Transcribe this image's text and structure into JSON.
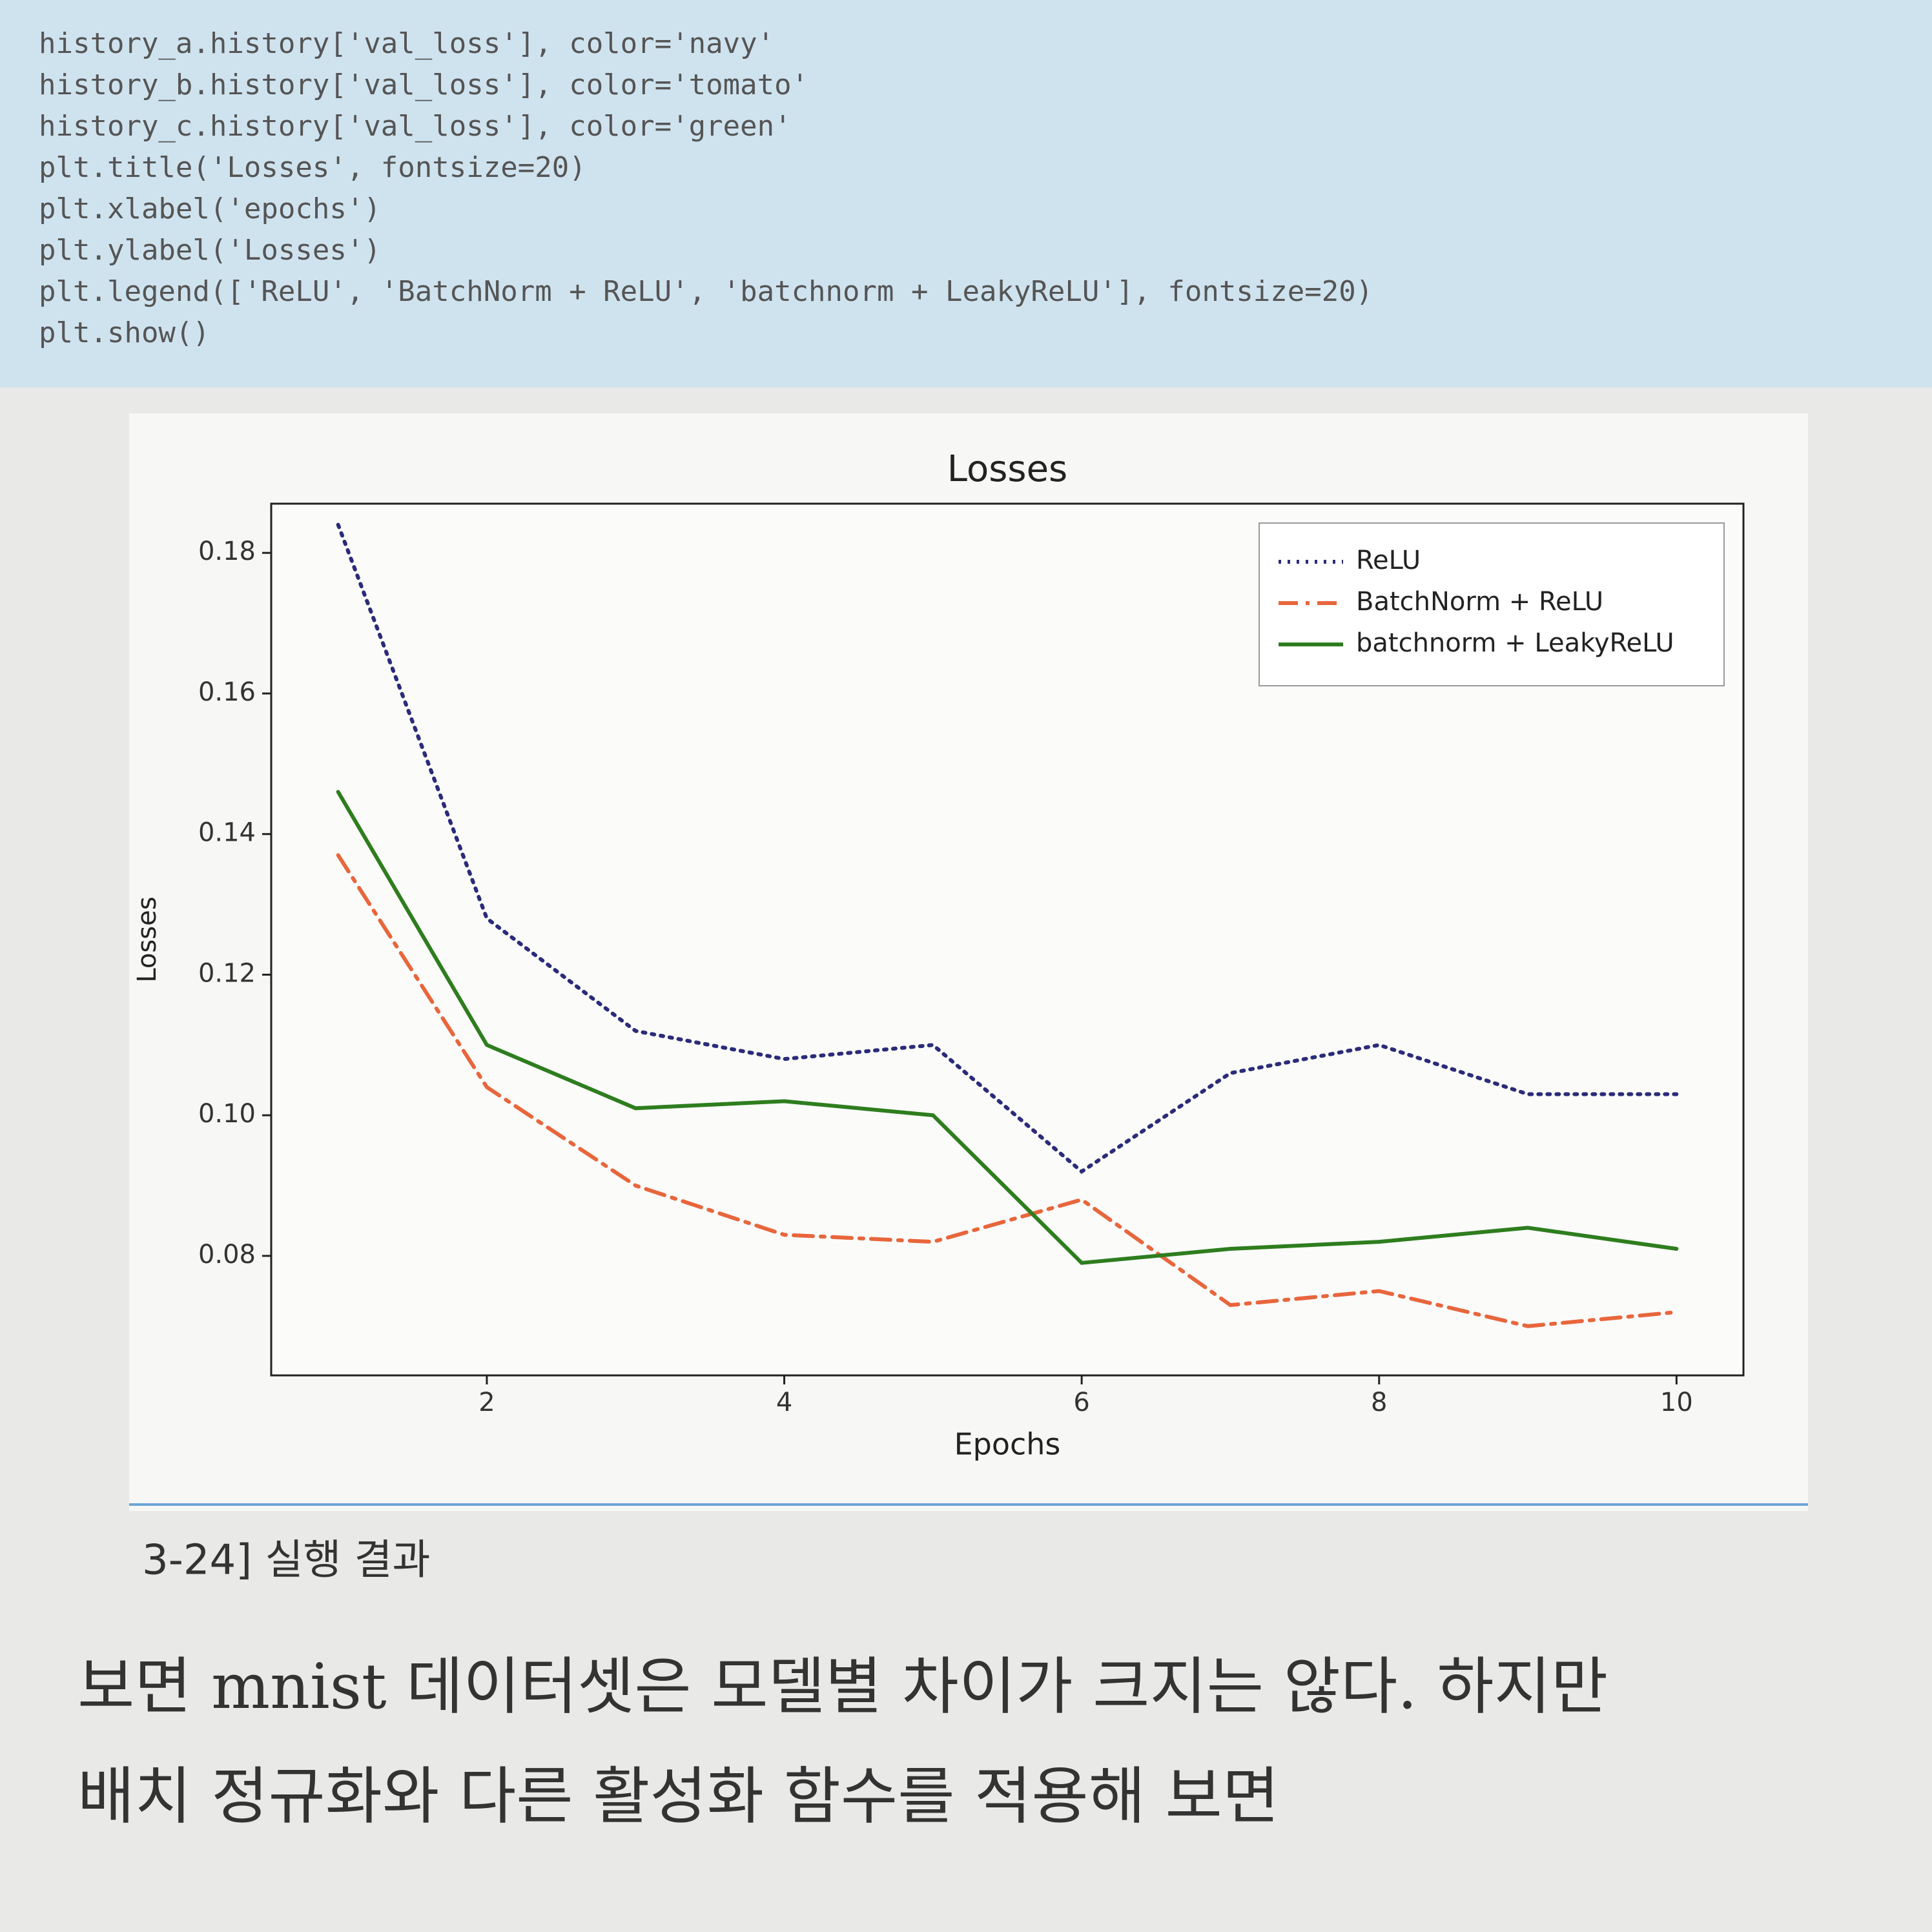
{
  "code": {
    "lines": [
      "history_a.history['val_loss'], color='navy'",
      "history_b.history['val_loss'], color='tomato'",
      "history_c.history['val_loss'], color='green'",
      "plt.title('Losses', fontsize=20)",
      "plt.xlabel('epochs')",
      "plt.ylabel('Losses')",
      "plt.legend(['ReLU', 'BatchNorm + ReLU', 'batchnorm + LeakyReLU'], fontsize=20)",
      "plt.show()"
    ]
  },
  "chart_data": {
    "type": "line",
    "title": "Losses",
    "x_label": "Epochs",
    "y_label": "Losses",
    "x": [
      1,
      2,
      3,
      4,
      5,
      6,
      7,
      8,
      9,
      10
    ],
    "series": [
      {
        "name": "ReLU",
        "color": "#2b2b7a",
        "dash": "dotted",
        "values": [
          0.184,
          0.128,
          0.112,
          0.108,
          0.11,
          0.092,
          0.106,
          0.11,
          0.103,
          0.103
        ]
      },
      {
        "name": "BatchNorm + ReLU",
        "color": "#e8663c",
        "dash": "dashdot",
        "values": [
          0.137,
          0.104,
          0.09,
          0.083,
          0.082,
          0.088,
          0.073,
          0.075,
          0.07,
          0.072
        ]
      },
      {
        "name": "batchnorm + LeakyReLU",
        "color": "#2e7d1e",
        "dash": "solid",
        "values": [
          0.146,
          0.11,
          0.101,
          0.102,
          0.1,
          0.079,
          0.081,
          0.082,
          0.084,
          0.081
        ]
      }
    ],
    "xlim": [
      0.55,
      10.45
    ],
    "xticks": [
      2,
      4,
      6,
      8,
      10
    ],
    "ylim": [
      0.063,
      0.187
    ],
    "yticks": [
      0.08,
      {
        "value": 0.1,
        "label": "0.10"
      },
      0.12,
      0.14,
      0.16,
      0.18
    ],
    "legend": "upper right"
  },
  "caption": "3-24] 실행 결과",
  "body": {
    "lines": [
      "보면 mnist 데이터셋은 모델별 차이가 크지는 않다. 하지만",
      "배치 정규화와 다른 활성화 함수를 적용해 보면"
    ]
  }
}
